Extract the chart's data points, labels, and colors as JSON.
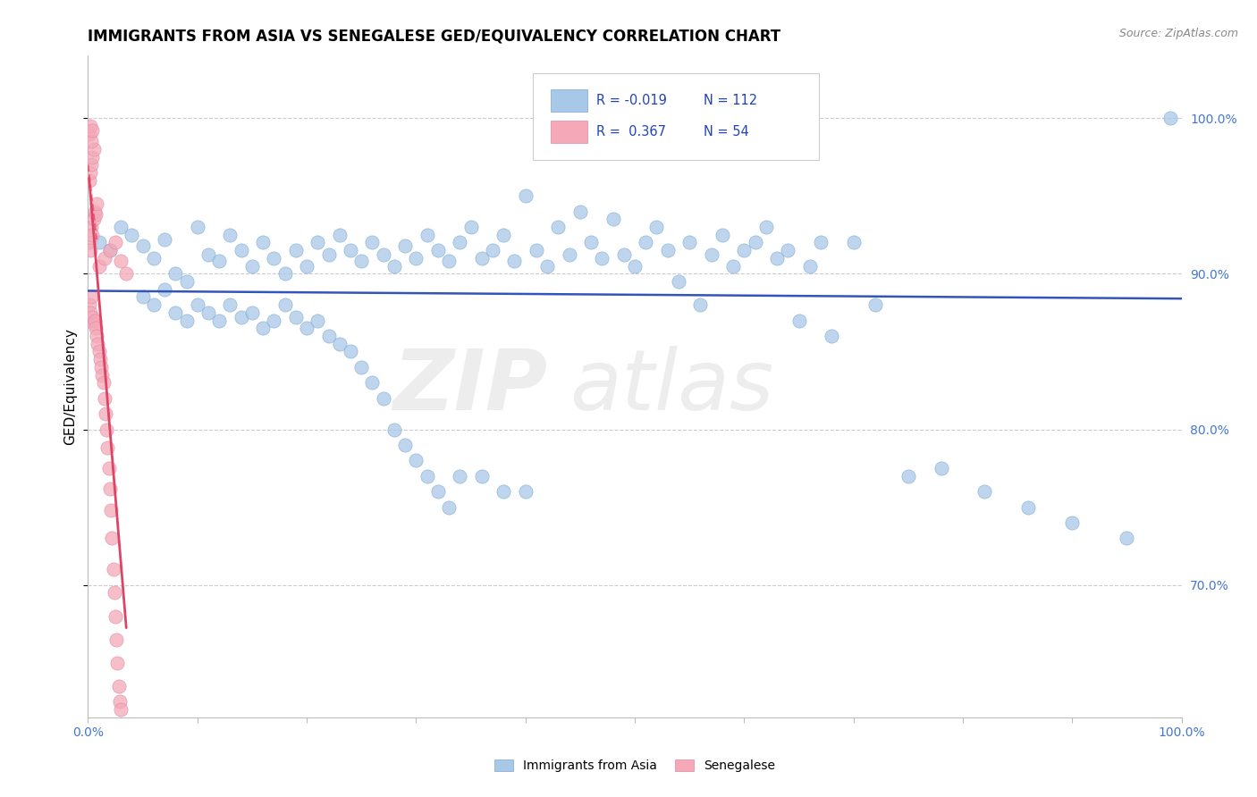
{
  "title": "IMMIGRANTS FROM ASIA VS SENEGALESE GED/EQUIVALENCY CORRELATION CHART",
  "source_text": "Source: ZipAtlas.com",
  "ylabel": "GED/Equivalency",
  "yticks": [
    "70.0%",
    "80.0%",
    "90.0%",
    "100.0%"
  ],
  "ytick_vals": [
    0.7,
    0.8,
    0.9,
    1.0
  ],
  "xlim": [
    0.0,
    1.0
  ],
  "ylim": [
    0.615,
    1.04
  ],
  "blue_color": "#a8c8e8",
  "blue_edge": "#7aaad0",
  "pink_color": "#f4a8b8",
  "pink_edge": "#e088a0",
  "line_blue": "#3355bb",
  "line_pink": "#dd4466",
  "grid_color": "#cccccc",
  "watermark_zip": "ZIP",
  "watermark_atlas": "atlas",
  "blue_scatter_x": [
    0.01,
    0.02,
    0.03,
    0.04,
    0.05,
    0.06,
    0.07,
    0.08,
    0.09,
    0.1,
    0.11,
    0.12,
    0.13,
    0.14,
    0.15,
    0.16,
    0.17,
    0.18,
    0.19,
    0.2,
    0.21,
    0.22,
    0.23,
    0.24,
    0.25,
    0.26,
    0.27,
    0.28,
    0.29,
    0.3,
    0.31,
    0.32,
    0.33,
    0.34,
    0.35,
    0.36,
    0.37,
    0.38,
    0.39,
    0.4,
    0.41,
    0.42,
    0.43,
    0.44,
    0.45,
    0.46,
    0.47,
    0.48,
    0.49,
    0.5,
    0.51,
    0.52,
    0.53,
    0.54,
    0.55,
    0.56,
    0.57,
    0.58,
    0.59,
    0.6,
    0.61,
    0.62,
    0.63,
    0.64,
    0.65,
    0.66,
    0.67,
    0.68,
    0.7,
    0.72,
    0.75,
    0.78,
    0.82,
    0.86,
    0.9,
    0.95,
    0.99,
    0.05,
    0.06,
    0.07,
    0.08,
    0.09,
    0.1,
    0.11,
    0.12,
    0.13,
    0.14,
    0.15,
    0.16,
    0.17,
    0.18,
    0.19,
    0.2,
    0.21,
    0.22,
    0.23,
    0.24,
    0.25,
    0.26,
    0.27,
    0.28,
    0.29,
    0.3,
    0.31,
    0.32,
    0.33,
    0.34,
    0.36,
    0.38,
    0.4
  ],
  "blue_scatter_y": [
    0.92,
    0.915,
    0.93,
    0.925,
    0.918,
    0.91,
    0.922,
    0.9,
    0.895,
    0.93,
    0.912,
    0.908,
    0.925,
    0.915,
    0.905,
    0.92,
    0.91,
    0.9,
    0.915,
    0.905,
    0.92,
    0.912,
    0.925,
    0.915,
    0.908,
    0.92,
    0.912,
    0.905,
    0.918,
    0.91,
    0.925,
    0.915,
    0.908,
    0.92,
    0.93,
    0.91,
    0.915,
    0.925,
    0.908,
    0.95,
    0.915,
    0.905,
    0.93,
    0.912,
    0.94,
    0.92,
    0.91,
    0.935,
    0.912,
    0.905,
    0.92,
    0.93,
    0.915,
    0.895,
    0.92,
    0.88,
    0.912,
    0.925,
    0.905,
    0.915,
    0.92,
    0.93,
    0.91,
    0.915,
    0.87,
    0.905,
    0.92,
    0.86,
    0.92,
    0.88,
    0.77,
    0.775,
    0.76,
    0.75,
    0.74,
    0.73,
    1.0,
    0.885,
    0.88,
    0.89,
    0.875,
    0.87,
    0.88,
    0.875,
    0.87,
    0.88,
    0.872,
    0.875,
    0.865,
    0.87,
    0.88,
    0.872,
    0.865,
    0.87,
    0.86,
    0.855,
    0.85,
    0.84,
    0.83,
    0.82,
    0.8,
    0.79,
    0.78,
    0.77,
    0.76,
    0.75,
    0.77,
    0.77,
    0.76,
    0.76
  ],
  "pink_scatter_x": [
    0.001,
    0.002,
    0.003,
    0.004,
    0.005,
    0.006,
    0.007,
    0.008,
    0.009,
    0.01,
    0.011,
    0.012,
    0.013,
    0.014,
    0.015,
    0.016,
    0.017,
    0.018,
    0.019,
    0.02,
    0.021,
    0.022,
    0.023,
    0.024,
    0.025,
    0.026,
    0.027,
    0.028,
    0.029,
    0.03,
    0.001,
    0.002,
    0.003,
    0.004,
    0.005,
    0.006,
    0.007,
    0.008,
    0.001,
    0.002,
    0.003,
    0.004,
    0.005,
    0.01,
    0.015,
    0.02,
    0.025,
    0.03,
    0.035,
    0.001,
    0.002,
    0.003,
    0.004
  ],
  "pink_scatter_y": [
    0.88,
    0.875,
    0.885,
    0.872,
    0.868,
    0.87,
    0.865,
    0.86,
    0.855,
    0.85,
    0.845,
    0.84,
    0.835,
    0.83,
    0.82,
    0.81,
    0.8,
    0.788,
    0.775,
    0.762,
    0.748,
    0.73,
    0.71,
    0.695,
    0.68,
    0.665,
    0.65,
    0.635,
    0.625,
    0.62,
    0.92,
    0.915,
    0.93,
    0.925,
    0.935,
    0.94,
    0.938,
    0.945,
    0.96,
    0.965,
    0.97,
    0.975,
    0.98,
    0.905,
    0.91,
    0.915,
    0.92,
    0.908,
    0.9,
    0.99,
    0.995,
    0.985,
    0.992
  ]
}
